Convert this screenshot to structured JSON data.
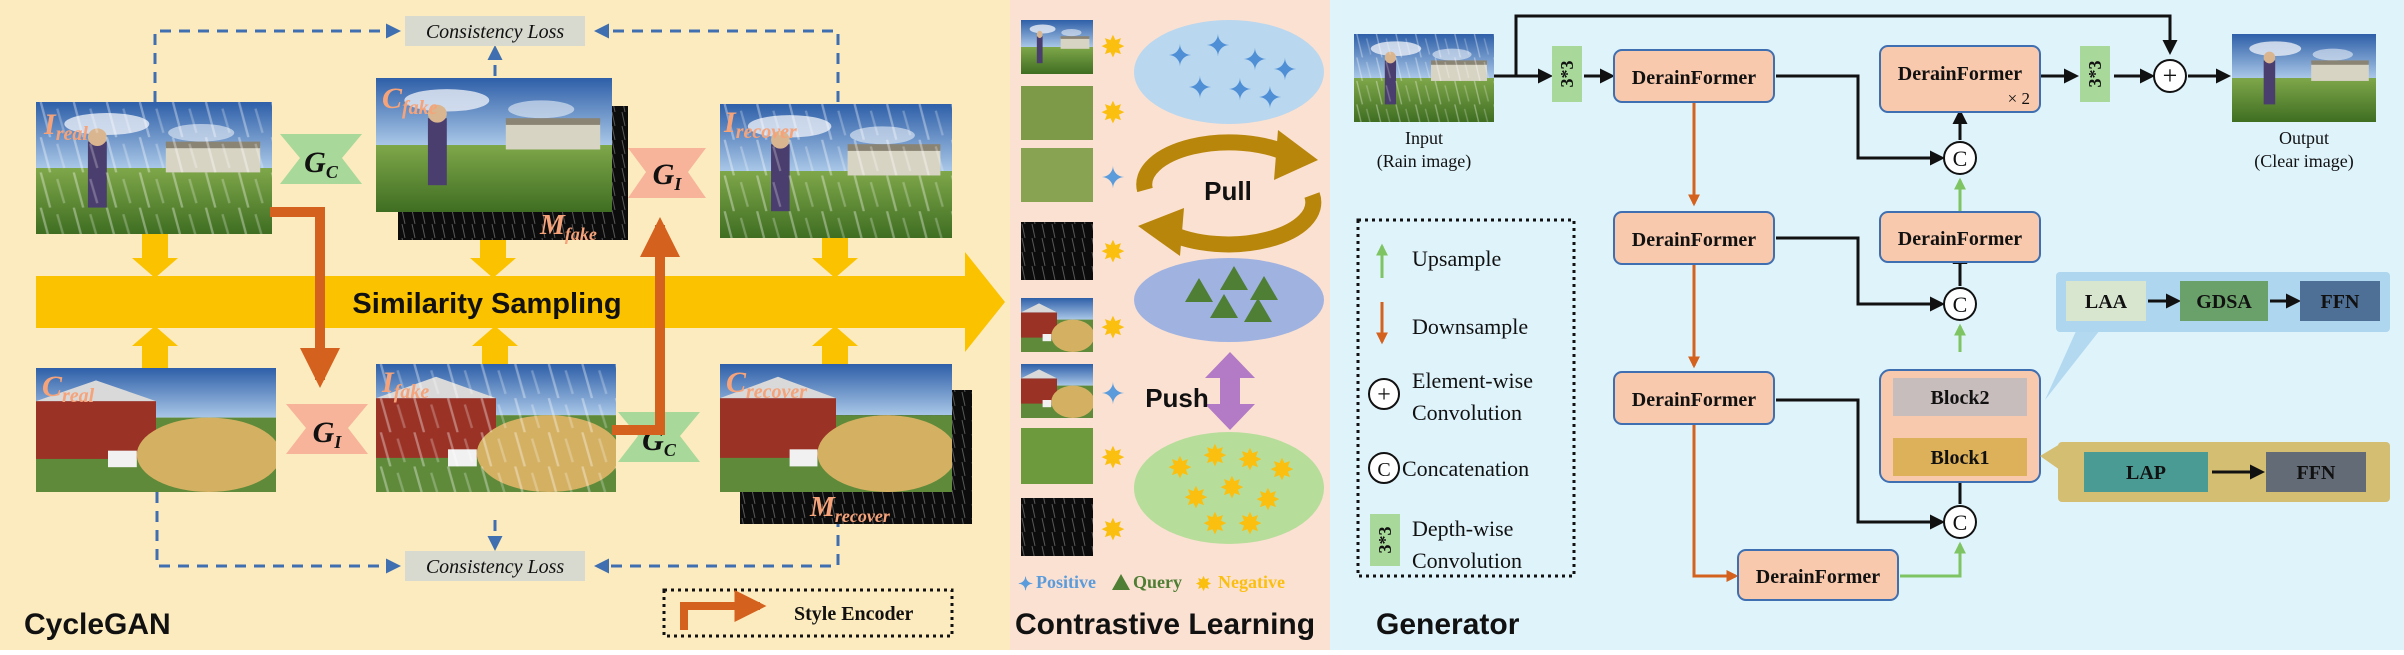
{
  "panels": {
    "cyclegan": {
      "title": "CycleGAN"
    },
    "contrastive": {
      "title": "Contrastive Learning"
    },
    "generator": {
      "title": "Generator"
    }
  },
  "cyclegan": {
    "consistency_loss_top": "Consistency Loss",
    "consistency_loss_bottom": "Consistency Loss",
    "similarity_sampling": "Similarity Sampling",
    "images": {
      "i_real": {
        "main": "I",
        "sub": "real"
      },
      "c_fake": {
        "main": "C",
        "sub": "fake"
      },
      "m_fake": {
        "main": "M",
        "sub": "fake"
      },
      "i_recover": {
        "main": "I",
        "sub": "recover"
      },
      "c_real": {
        "main": "C",
        "sub": "real"
      },
      "i_fake": {
        "main": "I",
        "sub": "fake"
      },
      "c_recover": {
        "main": "C",
        "sub": "recover"
      },
      "m_recover": {
        "main": "M",
        "sub": "recover"
      }
    },
    "generators": {
      "gc_top": {
        "main": "G",
        "sub": "C"
      },
      "gi_top": {
        "main": "G",
        "sub": "I"
      },
      "gi_bottom": {
        "main": "G",
        "sub": "I"
      },
      "gc_bottom": {
        "main": "G",
        "sub": "C"
      }
    },
    "style_encoder_label": "Style Encoder"
  },
  "contrastive": {
    "pull_label": "Pull",
    "push_label": "Push",
    "legend": {
      "positive": "Positive",
      "query": "Query",
      "negative": "Negative"
    }
  },
  "generator": {
    "input_label": "Input",
    "input_sublabel": "(Rain image)",
    "output_label": "Output",
    "output_sublabel": "(Clear image)",
    "conv_label": "3*3",
    "block_main": "DerainFormer",
    "block_x2_note": "× 2",
    "block1": "Block1",
    "block2": "Block2",
    "concat_symbol": "C",
    "add_symbol": "+",
    "attn_row": [
      "LAA",
      "GDSA",
      "FFN"
    ],
    "ffn_row": [
      "LAP",
      "FFN"
    ],
    "legend": {
      "upsample": "Upsample",
      "downsample": "Downsample",
      "elementwise_1": "Element-wise",
      "elementwise_2": "Convolution",
      "concatenation": "Concatenation",
      "depthwise_1": "Depth-wise",
      "depthwise_2": "Convolution"
    }
  },
  "colors": {
    "cyclegan_bg": "#fcebbf",
    "contrastive_bg": "#fbe1d2",
    "generator_bg": "#dff3fb",
    "sampling_arrow": "#fbc200",
    "green_gen": "#a8d89a",
    "pink_gen": "#f7b49b",
    "orange_arrow": "#d4611d",
    "block_fill": "#f9c9ad",
    "upsample": "#7ec462",
    "blue_star": "#5a9bdc",
    "yellow_star": "#fbbf10",
    "query_tri": "#4f7e35"
  }
}
